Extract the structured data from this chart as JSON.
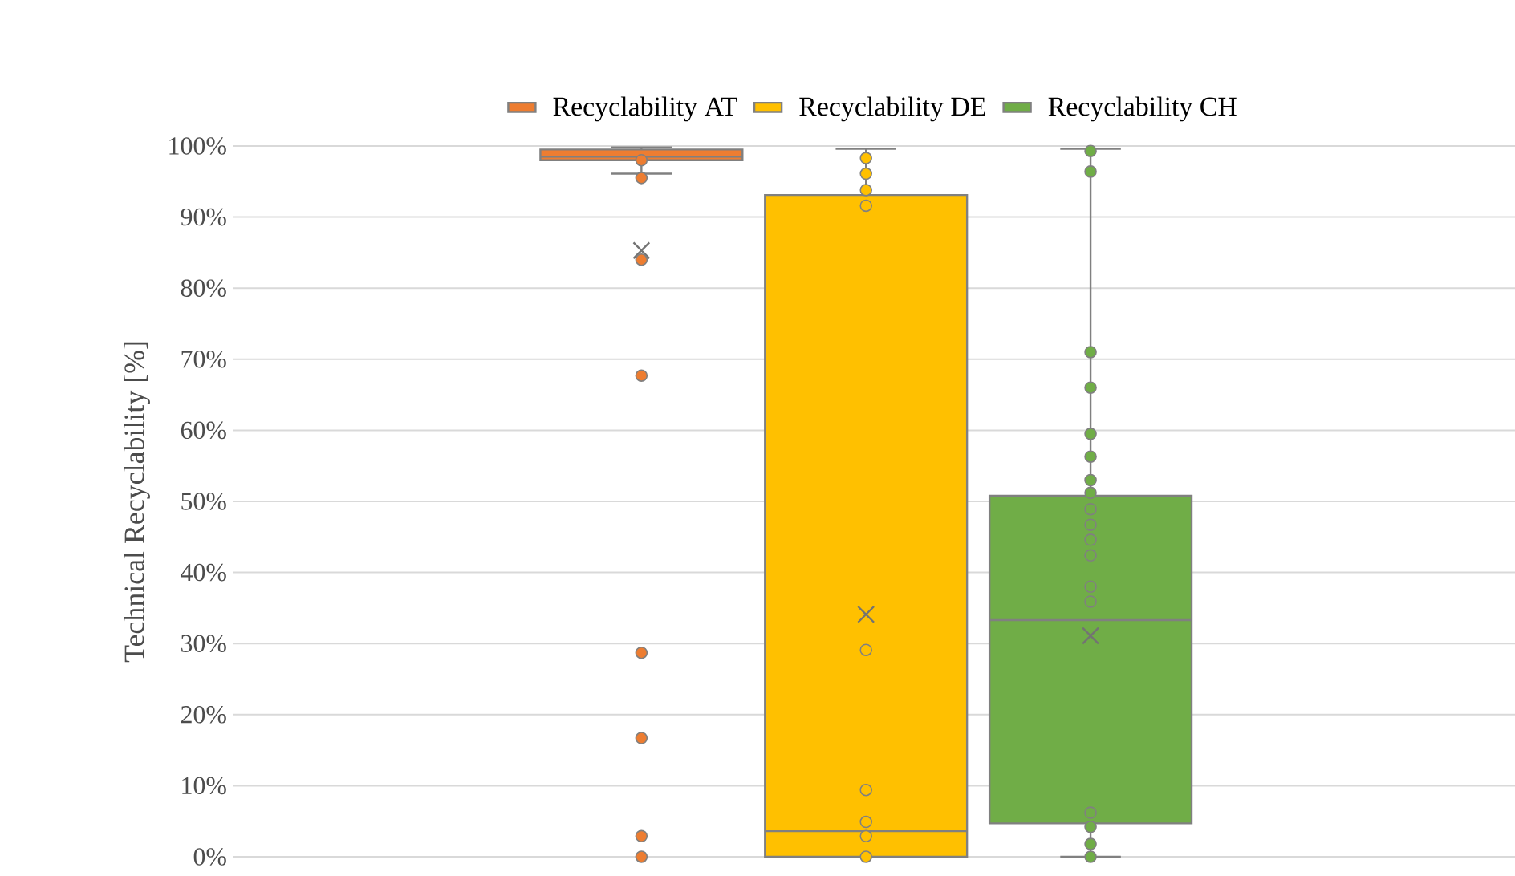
{
  "chart_data": {
    "type": "box",
    "ylabel": "Technical Recyclability [%]",
    "categories": [
      null
    ],
    "series": [
      {
        "name": "Recyclability AT",
        "color": "#ed7d31",
        "boxes": [
          {
            "low": 96.1,
            "q1": 98.0,
            "median": 98.5,
            "q3": 99.5,
            "high": 99.8,
            "mean": 85.3,
            "outliers": [
              98.0,
              95.5,
              84.0,
              67.7,
              28.7,
              16.7,
              2.9,
              0
            ]
          }
        ]
      },
      {
        "name": "Recyclability DE",
        "color": "#ffc000",
        "boxes": [
          {
            "low": 0,
            "q1": 0,
            "median": 3.6,
            "q3": 93.1,
            "high": 99.6,
            "mean": 34.1,
            "outliers": [
              98.3,
              96.1,
              93.8,
              91.6,
              29.1,
              9.4,
              4.9,
              2.9,
              0
            ]
          }
        ]
      },
      {
        "name": "Recyclability CH",
        "color": "#70ad47",
        "boxes": [
          {
            "low": 0,
            "q1": 4.7,
            "median": 33.3,
            "q3": 50.8,
            "high": 99.6,
            "mean": 31.1,
            "outliers": [
              99.3,
              96.4,
              71.0,
              66.0,
              59.5,
              56.3,
              53.0,
              51.2,
              48.9,
              46.7,
              44.6,
              42.4,
              38.0,
              35.9,
              6.2,
              4.2,
              1.8,
              0
            ]
          }
        ]
      }
    ],
    "ylim": [
      0,
      100
    ],
    "yticks": [
      {
        "value": 0,
        "label": "0%"
      },
      {
        "value": 10,
        "label": "10%"
      },
      {
        "value": 20,
        "label": "20%"
      },
      {
        "value": 30,
        "label": "30%"
      },
      {
        "value": 40,
        "label": "40%"
      },
      {
        "value": 50,
        "label": "50%"
      },
      {
        "value": 60,
        "label": "60%"
      },
      {
        "value": 70,
        "label": "70%"
      },
      {
        "value": 80,
        "label": "80%"
      },
      {
        "value": 90,
        "label": "90%"
      },
      {
        "value": 100,
        "label": "100%"
      }
    ],
    "grid": "y",
    "legend": "top",
    "marker": "circle",
    "tick_labels": "y"
  }
}
